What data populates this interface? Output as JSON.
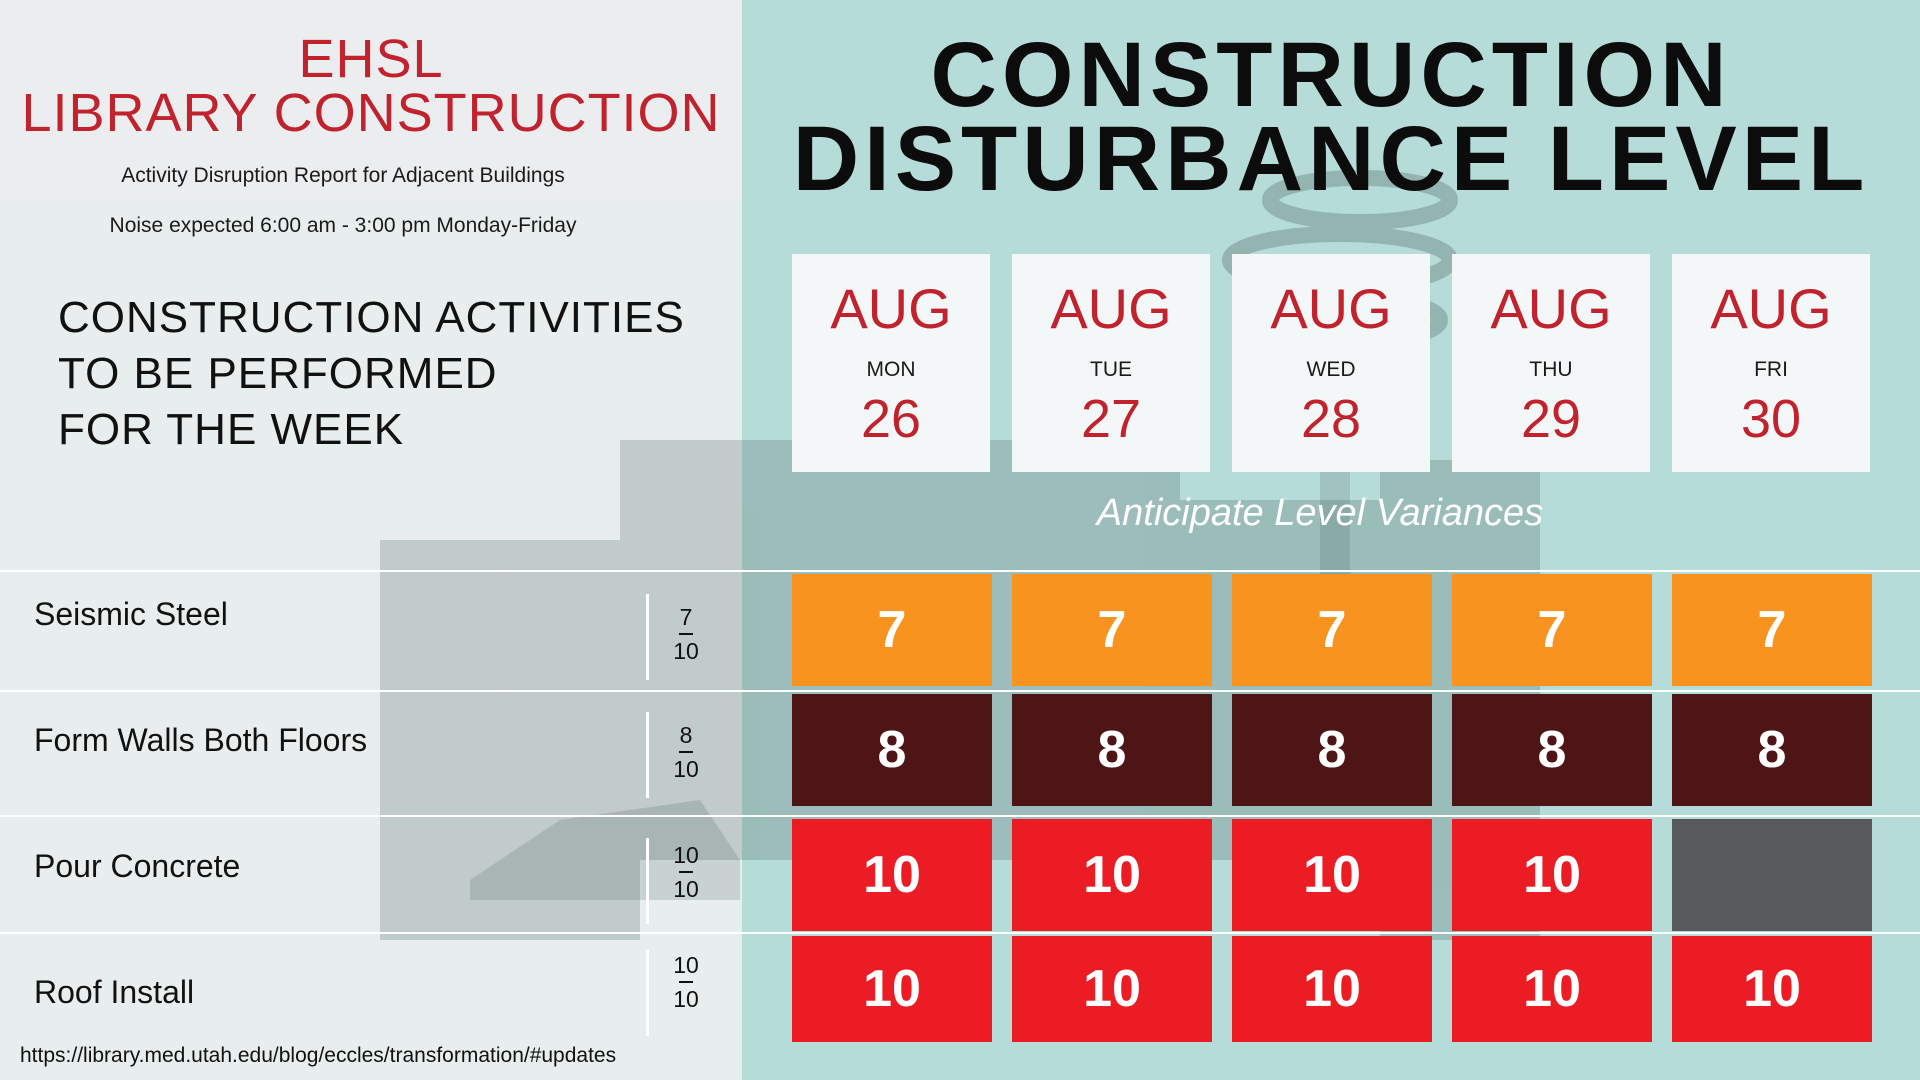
{
  "header": {
    "brand_line1": "EHSL",
    "brand_line2": "LIBRARY CONSTRUCTION",
    "subtitle": "Activity Disruption Report for Adjacent Buildings",
    "noise_hours": "Noise expected 6:00 am - 3:00 pm Monday-Friday"
  },
  "activities_heading": [
    "CONSTRUCTION ACTIVITIES",
    "TO BE PERFORMED",
    "FOR THE WEEK"
  ],
  "title": [
    "CONSTRUCTION",
    "DISTURBANCE LEVEL"
  ],
  "days": [
    {
      "month": "AUG",
      "weekday": "MON",
      "date": "26"
    },
    {
      "month": "AUG",
      "weekday": "TUE",
      "date": "27"
    },
    {
      "month": "AUG",
      "weekday": "WED",
      "date": "28"
    },
    {
      "month": "AUG",
      "weekday": "THU",
      "date": "29"
    },
    {
      "month": "AUG",
      "weekday": "FRI",
      "date": "30"
    }
  ],
  "variance_note": "Anticipate Level Variances",
  "activities": [
    {
      "name": "Seismic Steel",
      "level": "7",
      "max": "10",
      "values": [
        "7",
        "7",
        "7",
        "7",
        "7"
      ],
      "color": "#f7931e"
    },
    {
      "name": "Form Walls Both Floors",
      "level": "8",
      "max": "10",
      "values": [
        "8",
        "8",
        "8",
        "8",
        "8"
      ],
      "color": "#4e1516"
    },
    {
      "name": "Pour Concrete",
      "level": "10",
      "max": "10",
      "values": [
        "10",
        "10",
        "10",
        "10",
        ""
      ],
      "color": "#ec1c24"
    },
    {
      "name": "Roof Install",
      "level": "10",
      "max": "10",
      "values": [
        "10",
        "10",
        "10",
        "10",
        "10"
      ],
      "color": "#ec1c24"
    }
  ],
  "empty_cell_color": "#58595b",
  "url": "https://library.med.utah.edu/blog/eccles/transformation/#updates"
}
